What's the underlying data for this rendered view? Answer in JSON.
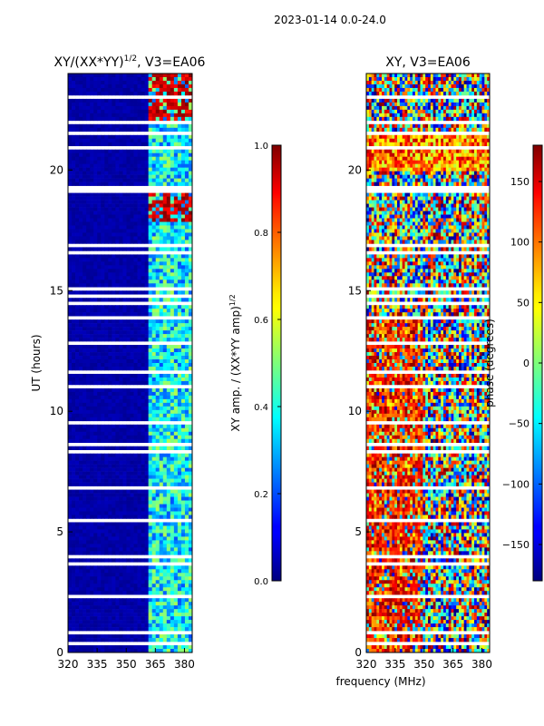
{
  "suptitle": "2023-01-14 0.0-24.0",
  "colors": {
    "background": "#ffffff",
    "colormap": "jet"
  },
  "chart_data": [
    {
      "type": "heatmap",
      "title": "XY/(XX*YY)^1/2, V3=EA06",
      "title_text": "XY/(XX*YY)",
      "title_sup": "1/2",
      "title_tail": ", V3=EA06",
      "ylabel": "UT (hours)",
      "xlabel": "",
      "x_ticks": [
        "320",
        "335",
        "350",
        "365",
        "380"
      ],
      "x_tick_values": [
        320,
        335,
        350,
        365,
        380
      ],
      "y_ticks": [
        "0",
        "5",
        "10",
        "15",
        "20"
      ],
      "y_tick_values": [
        0,
        5,
        10,
        15,
        20
      ],
      "xlim": [
        320,
        384
      ],
      "ylim": [
        0,
        24
      ],
      "colorbar": {
        "label": "XY amp. / (XX*YY amp)^1/2",
        "label_text": "XY amp. / (XX*YY amp)",
        "label_sup": "1/2",
        "range": [
          0.0,
          1.0
        ],
        "ticks": [
          "0.0",
          "0.2",
          "0.4",
          "0.6",
          "0.8",
          "1.0"
        ],
        "tick_values": [
          0.0,
          0.2,
          0.4,
          0.6,
          0.8,
          1.0
        ]
      },
      "description_of_values": {
        "low_band_320_360": 0.02,
        "high_band_360_384": 0.35,
        "hot_spots_hours": [
          18.5,
          22.5,
          23.7
        ]
      }
    },
    {
      "type": "heatmap",
      "title": "XY, V3=EA06",
      "ylabel": "",
      "xlabel": "frequency (MHz)",
      "x_ticks": [
        "320",
        "335",
        "350",
        "365",
        "380"
      ],
      "x_tick_values": [
        320,
        335,
        350,
        365,
        380
      ],
      "y_ticks": [
        "0",
        "5",
        "10",
        "15",
        "20"
      ],
      "y_tick_values": [
        0,
        5,
        10,
        15,
        20
      ],
      "xlim": [
        320,
        384
      ],
      "ylim": [
        0,
        24
      ],
      "colorbar": {
        "label": "phase (degrees)",
        "range": [
          -180,
          180
        ],
        "ticks": [
          "−150",
          "−100",
          "−50",
          "0",
          "50",
          "100",
          "150"
        ],
        "tick_values": [
          -150,
          -100,
          -50,
          0,
          50,
          100,
          150
        ]
      }
    }
  ]
}
